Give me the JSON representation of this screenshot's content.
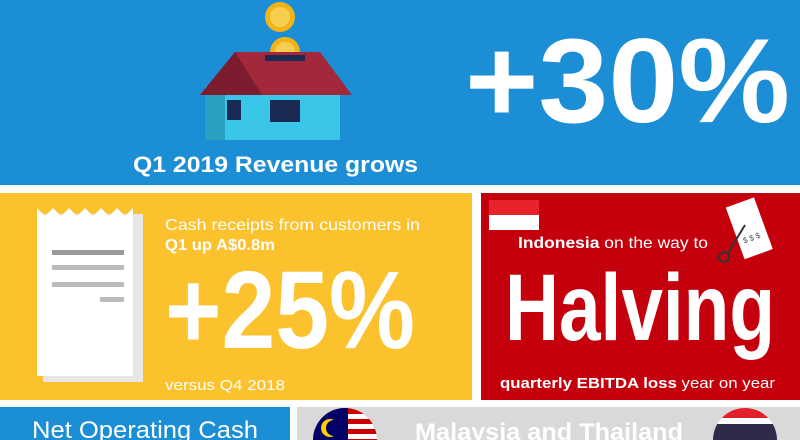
{
  "hero": {
    "value": "+30%",
    "caption": "Q1 2019 Revenue grows"
  },
  "cash_receipts": {
    "line1": "Cash receipts from customers in",
    "line2": "Q1 up A$0.8m",
    "value": "+25%",
    "note": "versus Q4 2018",
    "receipt_icon": "$ $ $"
  },
  "indonesia": {
    "lead_bold": "Indonesia",
    "lead": " on the way to",
    "headline": "Halving",
    "foot_bold": "quarterly EBITDA loss",
    "foot": " year on year"
  },
  "bottom": {
    "left": "Net Operating Cash",
    "right": "Malaysia and Thailand"
  }
}
